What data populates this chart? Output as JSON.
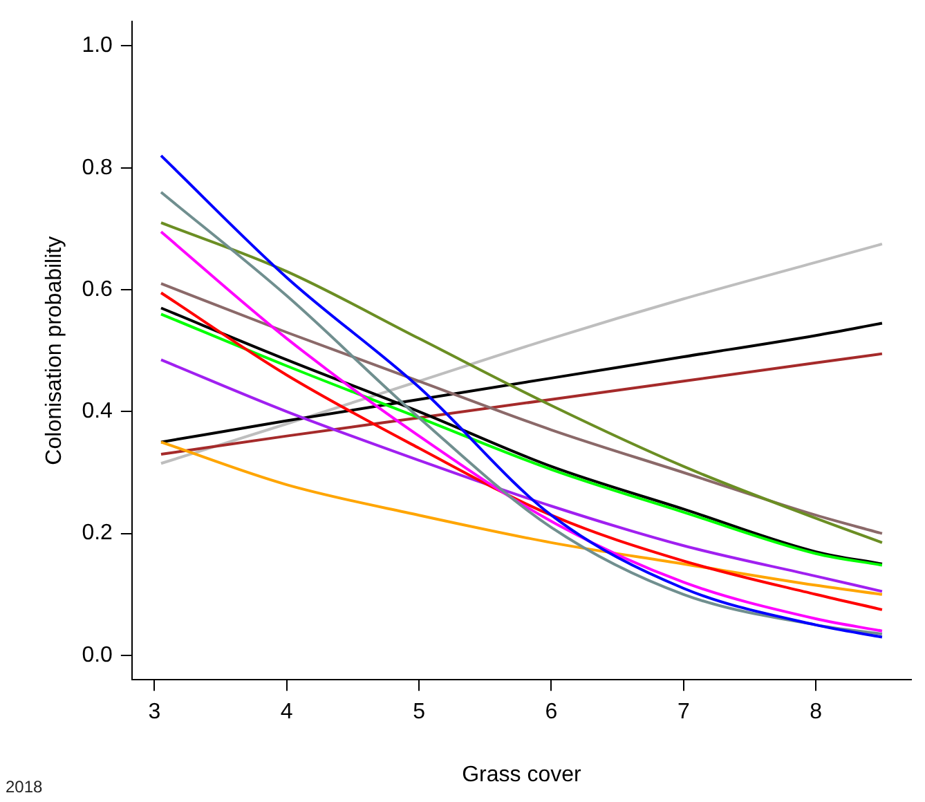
{
  "chart_data": {
    "type": "line",
    "xlabel": "Grass cover",
    "ylabel": "Colonisation probability",
    "x": [
      3.05,
      4,
      5,
      6,
      7,
      8,
      8.5
    ],
    "series": [
      {
        "color": "#0000ff",
        "values": [
          0.82,
          0.62,
          0.44,
          0.23,
          0.11,
          0.05,
          0.03
        ]
      },
      {
        "color": "#708f8f",
        "values": [
          0.76,
          0.59,
          0.39,
          0.21,
          0.1,
          0.05,
          0.035
        ]
      },
      {
        "color": "#6b8e23",
        "values": [
          0.71,
          0.63,
          0.52,
          0.41,
          0.31,
          0.225,
          0.185
        ]
      },
      {
        "color": "#ff00ff",
        "values": [
          0.695,
          0.52,
          0.36,
          0.22,
          0.12,
          0.06,
          0.04
        ]
      },
      {
        "color": "#8b6969",
        "values": [
          0.61,
          0.53,
          0.45,
          0.37,
          0.3,
          0.23,
          0.2
        ]
      },
      {
        "color": "#ff0000",
        "values": [
          0.595,
          0.46,
          0.34,
          0.23,
          0.155,
          0.1,
          0.075
        ]
      },
      {
        "color": "#00ff00",
        "values": [
          0.56,
          0.475,
          0.39,
          0.305,
          0.235,
          0.167,
          0.148
        ]
      },
      {
        "color": "#000000",
        "values": [
          0.57,
          0.485,
          0.4,
          0.31,
          0.24,
          0.17,
          0.15
        ]
      },
      {
        "color": "#a020f0",
        "values": [
          0.485,
          0.4,
          0.32,
          0.245,
          0.18,
          0.13,
          0.105
        ]
      },
      {
        "color": "#ffa500",
        "values": [
          0.35,
          0.28,
          0.23,
          0.185,
          0.15,
          0.115,
          0.1
        ]
      },
      {
        "color": "#000000",
        "values": [
          0.35,
          0.385,
          0.42,
          0.455,
          0.49,
          0.525,
          0.545
        ]
      },
      {
        "color": "#a52a2a",
        "values": [
          0.33,
          0.36,
          0.39,
          0.42,
          0.45,
          0.48,
          0.495
        ]
      },
      {
        "color": "#bebebe",
        "values": [
          0.315,
          0.38,
          0.45,
          0.52,
          0.585,
          0.645,
          0.675
        ]
      }
    ],
    "xlim": [
      2.83,
      8.72
    ],
    "xticks": [
      3,
      4,
      5,
      6,
      7,
      8
    ],
    "ylim": [
      -0.04,
      1.04
    ],
    "yticks": [
      {
        "value": 0,
        "label": "0.0"
      },
      {
        "value": 0.2,
        "label": "0.2"
      },
      {
        "value": 0.4,
        "label": "0.4"
      },
      {
        "value": 0.6,
        "label": "0.6"
      },
      {
        "value": 0.8,
        "label": "0.8"
      },
      {
        "value": 1,
        "label": "1.0"
      }
    ],
    "grid": false,
    "legend": false,
    "marker": "none",
    "line_style": "solid",
    "annotations": [
      "2018"
    ]
  }
}
